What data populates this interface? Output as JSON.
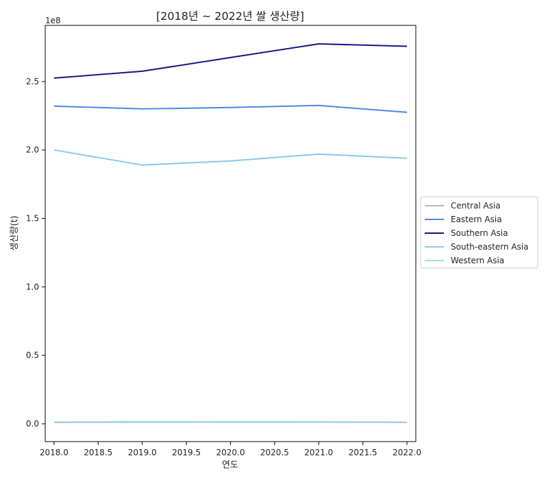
{
  "chart_data": {
    "type": "line",
    "title": "[2018년 ~ 2022년 쌀 생산량]",
    "xlabel": "연도",
    "ylabel": "생산량(t)",
    "y_offset_label": "1e8",
    "xlim": [
      2017.9,
      2022.1
    ],
    "ylim": [
      -13000000,
      291000000
    ],
    "x_ticks": [
      2018.0,
      2018.5,
      2019.0,
      2019.5,
      2020.0,
      2020.5,
      2021.0,
      2021.5,
      2022.0
    ],
    "x_tick_labels": [
      "2018.0",
      "2018.5",
      "2019.0",
      "2019.5",
      "2020.0",
      "2020.5",
      "2021.0",
      "2021.5",
      "2022.0"
    ],
    "y_ticks": [
      0,
      50000000,
      100000000,
      150000000,
      200000000,
      250000000
    ],
    "y_tick_labels": [
      "0.0",
      "0.5",
      "1.0",
      "1.5",
      "2.0",
      "2.5"
    ],
    "grid": false,
    "legend_position": "outside-right",
    "x": [
      2018,
      2019,
      2020,
      2021,
      2022
    ],
    "series": [
      {
        "name": "Central Asia",
        "color": "#b0b7d6",
        "values": [
          1000000,
          1200000,
          1100000,
          1200000,
          1000000
        ]
      },
      {
        "name": "Eastern Asia",
        "color": "#4a86e8",
        "values": [
          232000000,
          230000000,
          231000000,
          232500000,
          227500000
        ]
      },
      {
        "name": "Southern Asia",
        "color": "#151580",
        "values": [
          252500000,
          257500000,
          267500000,
          277500000,
          275700000
        ]
      },
      {
        "name": "South-eastern Asia",
        "color": "#88c8ee",
        "values": [
          200000000,
          189000000,
          192000000,
          197000000,
          194000000
        ]
      },
      {
        "name": "Western Asia",
        "color": "#a8dcea",
        "values": [
          1300000,
          1600000,
          1500000,
          1500000,
          1300000
        ]
      }
    ]
  }
}
